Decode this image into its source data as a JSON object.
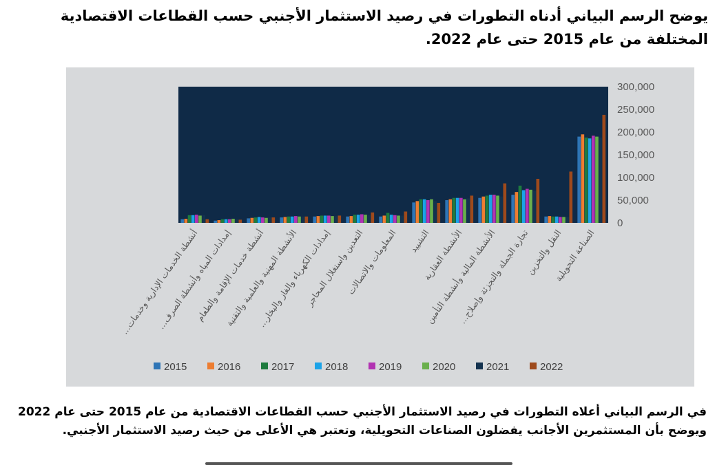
{
  "heading": "يوضح الرسم البياني أدناه التطورات في رصيد الاستثمار الأجنبي حسب القطاعات الاقتصادية المختلفة من عام 2015 حتى عام 2022.",
  "paragraph": "في الرسم البياني أعلاه التطورات في رصيد الاستثمار الأجنبي حسب القطاعات الاقتصادية من عام 2015 حتى عام 2022 ويوضح بأن المستثمرين الأجانب يفضلون الصناعات التحويلية، وتعتبر هي الأعلى من حيث رصيد الاستثمار الأجنبي.",
  "colors": {
    "plot_background": "#0f2a47",
    "frame_background": "#d7d9db",
    "series": [
      "#2e75b6",
      "#ed7d31",
      "#1e7b3e",
      "#1ba3e8",
      "#b233b2",
      "#6ab04c",
      "#13324f",
      "#9e4a1c"
    ]
  },
  "chart_data": {
    "type": "bar",
    "title": "",
    "xlabel": "",
    "ylabel": "",
    "ylim": [
      0,
      300000
    ],
    "yticks": [
      "0",
      "50,000",
      "100,000",
      "150,000",
      "200,000",
      "250,000",
      "300,000"
    ],
    "y_axis_position": "right",
    "grid": false,
    "legend_position": "bottom",
    "categories": [
      "أنشطة الخدمات الإدارية وخدمات...",
      "إمدادات المياه وأنشطة الصرف...",
      "أنشطة خدمات الإقامة والطعام",
      "الأنشطة المهنية والعلمية والتقنية",
      "إمدادات الكهرباء والغاز والبخار...",
      "التعدين واستغلال المحاجر",
      "المعلومات والاتصالات",
      "التشييد",
      "الأنشطة العقارية",
      "الأنشطة المالية وأنشطة التأمين",
      "تجارة الجملة والتجزئة وإصلاح...",
      "النقل والتخزين",
      "الصناعة التحويلية"
    ],
    "series": [
      {
        "name": "2015",
        "values": [
          8000,
          5000,
          10000,
          12000,
          14000,
          14000,
          14000,
          45000,
          50000,
          55000,
          62000,
          14000,
          190000
        ]
      },
      {
        "name": "2016",
        "values": [
          9000,
          6000,
          11000,
          13000,
          15000,
          15000,
          16000,
          48000,
          52000,
          58000,
          68000,
          15000,
          195000
        ]
      },
      {
        "name": "2017",
        "values": [
          17000,
          8000,
          12000,
          14000,
          16000,
          18000,
          22000,
          52000,
          55000,
          60000,
          82000,
          14000,
          188000
        ]
      },
      {
        "name": "2018",
        "values": [
          17000,
          8000,
          13000,
          14000,
          16000,
          18000,
          18000,
          52000,
          55000,
          62000,
          72000,
          14000,
          186000
        ]
      },
      {
        "name": "2019",
        "values": [
          18000,
          8000,
          12000,
          15000,
          16000,
          19000,
          17000,
          50000,
          55000,
          62000,
          75000,
          13000,
          192000
        ]
      },
      {
        "name": "2020",
        "values": [
          16000,
          9000,
          11000,
          14000,
          15000,
          18000,
          16000,
          52000,
          52000,
          60000,
          73000,
          13000,
          190000
        ]
      },
      {
        "name": "2021",
        "values": [
          17000,
          8000,
          12000,
          14000,
          15000,
          17000,
          16000,
          48000,
          54000,
          58000,
          70000,
          13000,
          188000
        ]
      },
      {
        "name": "2022",
        "values": [
          8000,
          7000,
          12000,
          14000,
          16000,
          23000,
          25000,
          44000,
          60000,
          87000,
          97000,
          113000,
          238000
        ]
      }
    ]
  }
}
